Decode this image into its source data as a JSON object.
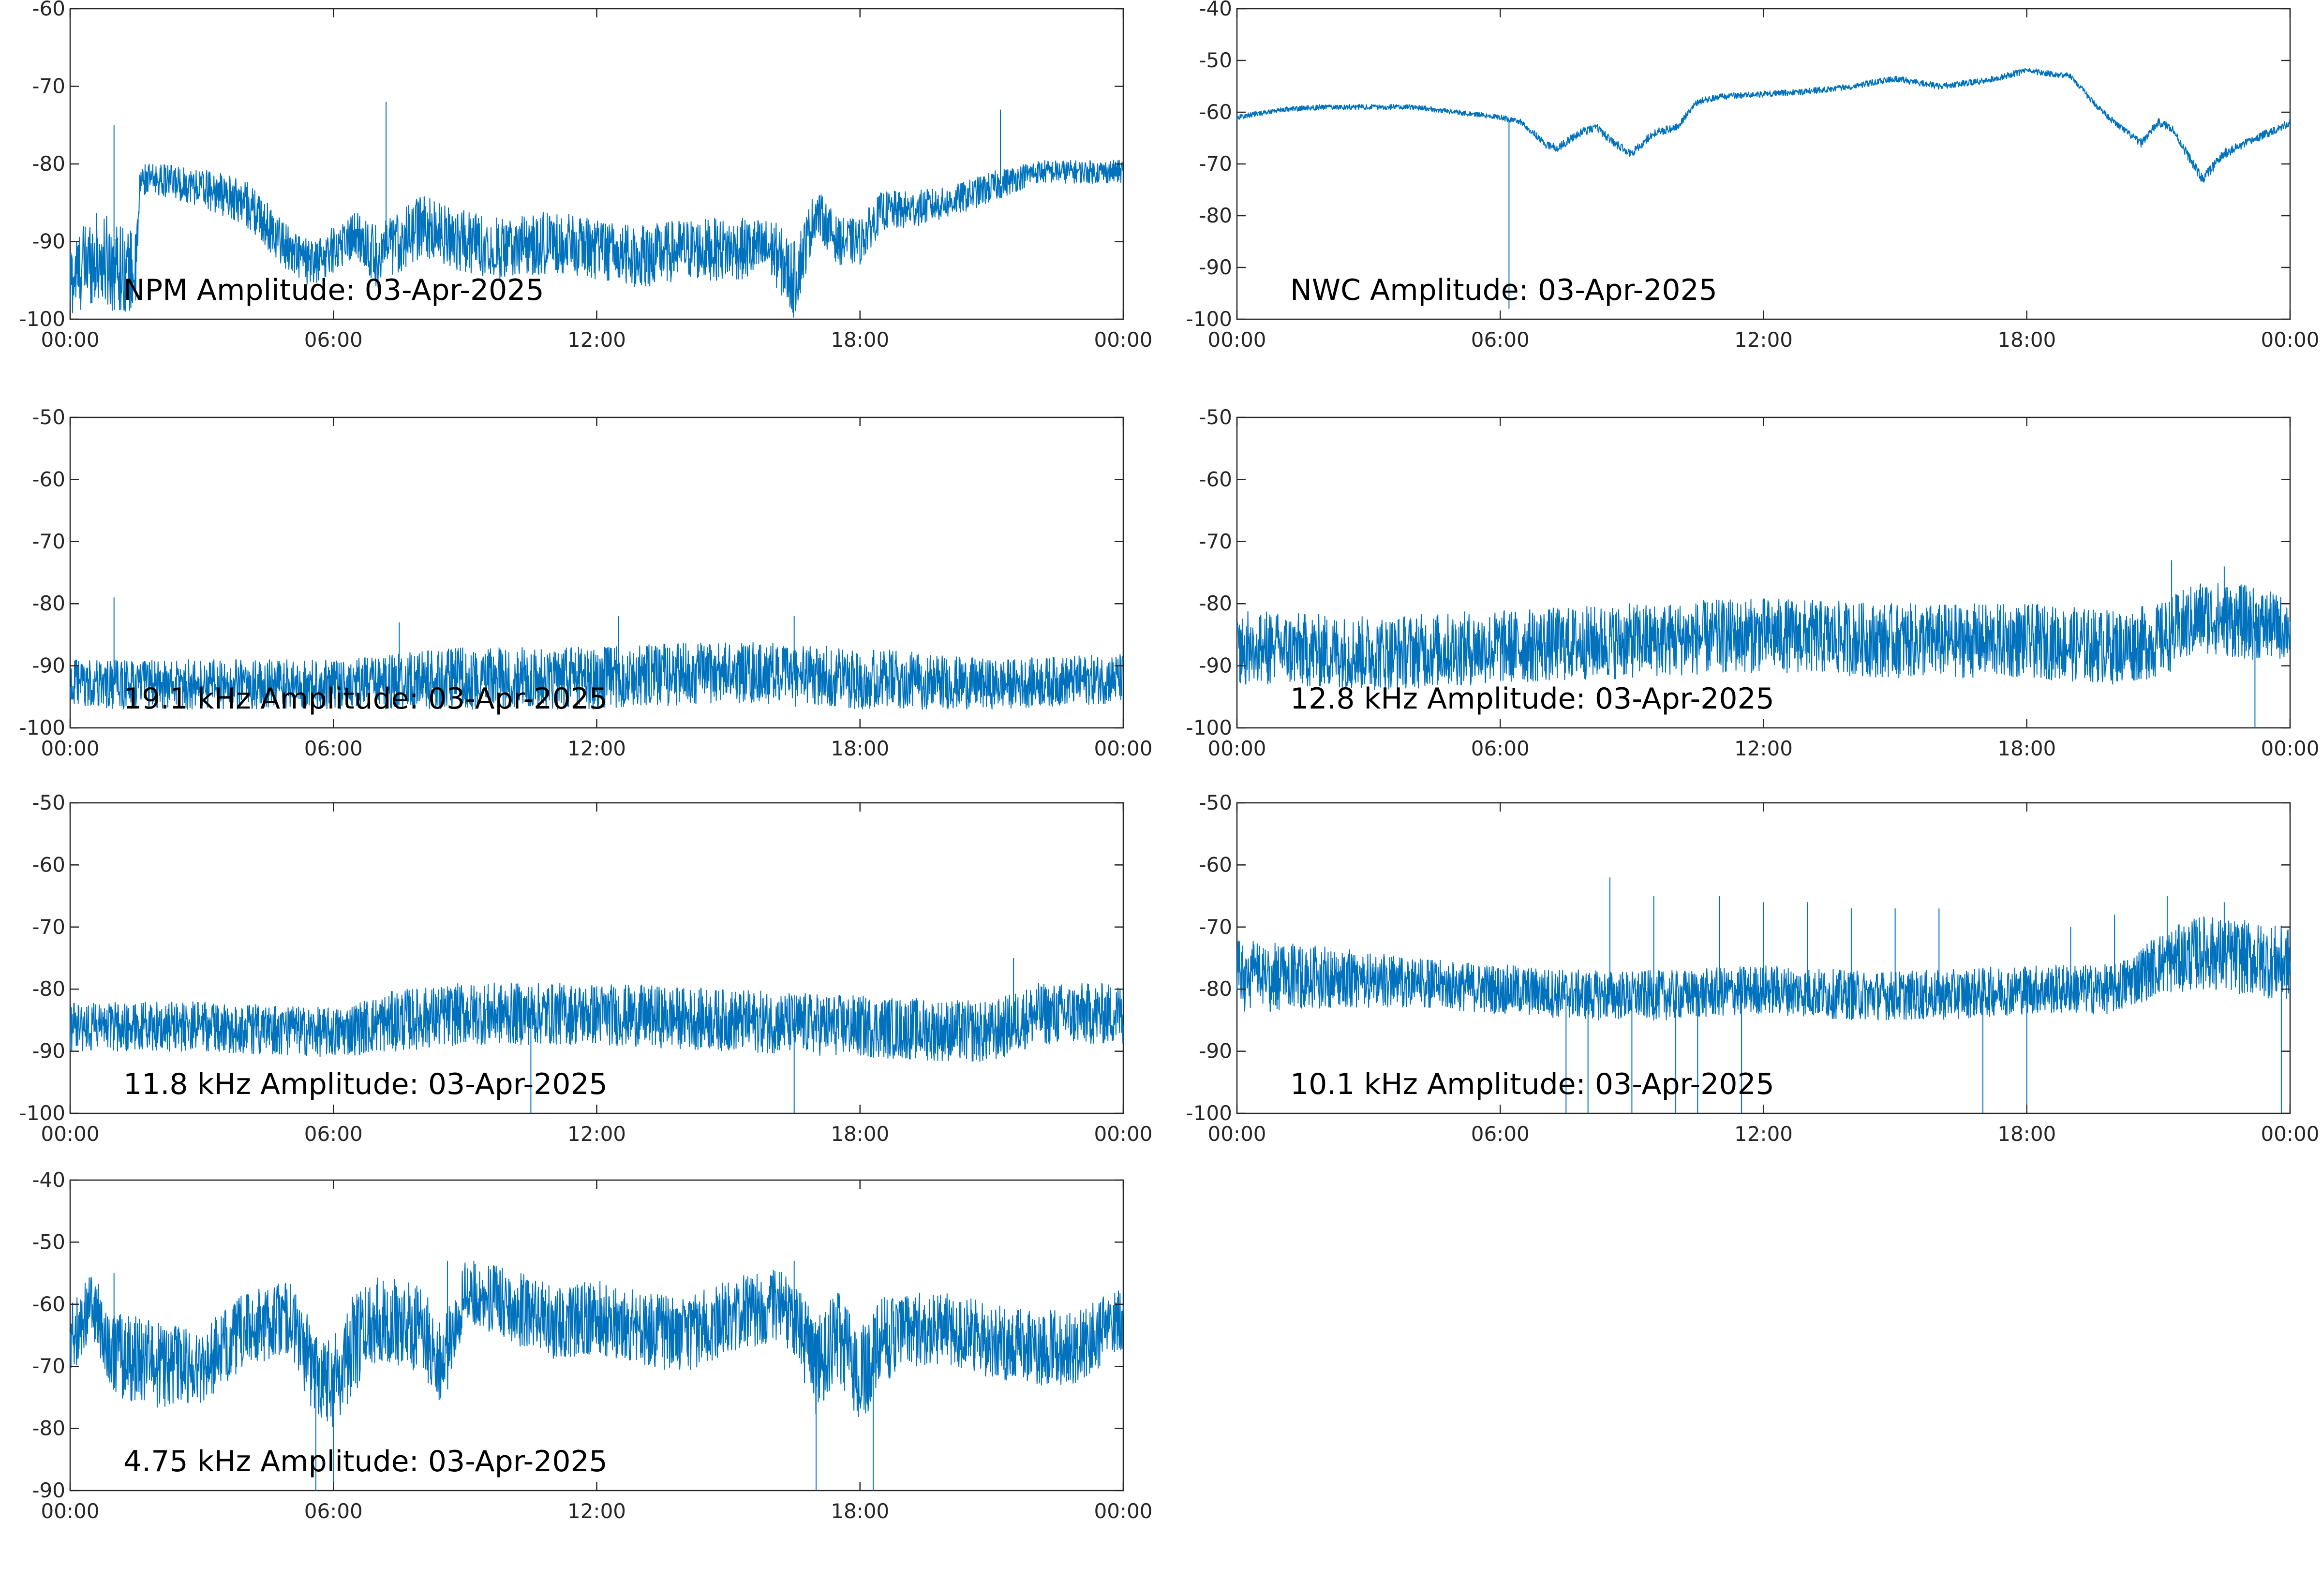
{
  "colors": {
    "line": "#0072bd",
    "axis": "#262626",
    "background": "#ffffff"
  },
  "x_tick_labels": [
    "00:00",
    "06:00",
    "12:00",
    "18:00",
    "00:00"
  ],
  "chart_data": [
    {
      "type": "line",
      "title": "NPM Amplitude: 03-Apr-2025",
      "xlabel": "",
      "ylabel": "",
      "x_range_hours": [
        0,
        24
      ],
      "ylim": [
        -100,
        -60
      ],
      "yticks": [
        -100,
        -90,
        -80,
        -70,
        -60
      ],
      "grid": false,
      "series": [
        {
          "x": [
            0,
            0.5,
            1,
            1.5,
            1.6,
            2,
            3,
            4,
            5,
            5.5,
            6,
            6.5,
            7,
            7.5,
            8,
            9,
            10,
            11,
            12,
            13,
            14,
            15,
            16,
            16.5,
            17,
            17.5,
            18,
            18.5,
            19,
            20,
            21,
            22,
            23,
            24
          ],
          "y": [
            -95,
            -92,
            -93,
            -94,
            -82,
            -82,
            -83,
            -85,
            -91,
            -93,
            -91,
            -89,
            -92,
            -90,
            -88,
            -90,
            -91,
            -90,
            -91,
            -92,
            -91,
            -91,
            -91,
            -95,
            -86,
            -90,
            -90,
            -86,
            -86,
            -85,
            -83,
            -81,
            -81,
            -81
          ],
          "spread": [
            5,
            6,
            6,
            5,
            2,
            2,
            2.5,
            3,
            3,
            3,
            3,
            3,
            4,
            4,
            4,
            4,
            4,
            4,
            4,
            4,
            4,
            4,
            4,
            5,
            3,
            3,
            3,
            2.5,
            2.5,
            2,
            2,
            1.5,
            1.5,
            1.5
          ],
          "spikes": [
            [
              1,
              -75
            ],
            [
              7.2,
              -72
            ],
            [
              21.2,
              -73
            ]
          ]
        }
      ]
    },
    {
      "type": "line",
      "title": "NWC Amplitude: 03-Apr-2025",
      "xlabel": "",
      "ylabel": "",
      "x_range_hours": [
        0,
        24
      ],
      "ylim": [
        -100,
        -40
      ],
      "yticks": [
        -100,
        -90,
        -80,
        -70,
        -60,
        -50,
        -40
      ],
      "grid": false,
      "series": [
        {
          "x": [
            0,
            1,
            2,
            3,
            4,
            5,
            6,
            6.5,
            7,
            7.3,
            7.8,
            8.2,
            8.6,
            9,
            9.5,
            10,
            10.5,
            11,
            12,
            13,
            14,
            15,
            16,
            17,
            18,
            19,
            19.5,
            20,
            20.6,
            21,
            21.3,
            22,
            22.5,
            23,
            24
          ],
          "y": [
            -61,
            -59.5,
            -59,
            -59,
            -59,
            -60,
            -61,
            -62,
            -66,
            -67,
            -64,
            -63,
            -66,
            -68,
            -64,
            -63,
            -58,
            -57,
            -56.5,
            -56,
            -55,
            -53.5,
            -55,
            -54,
            -52,
            -53,
            -58,
            -62,
            -66,
            -62,
            -63,
            -73,
            -68,
            -66,
            -62
          ],
          "spread": [
            0.5,
            0.5,
            0.5,
            0.5,
            0.5,
            0.5,
            0.5,
            0.6,
            0.8,
            0.8,
            0.8,
            0.8,
            0.8,
            0.8,
            0.8,
            0.8,
            0.6,
            0.6,
            0.6,
            0.6,
            0.6,
            0.6,
            0.6,
            0.6,
            0.6,
            0.6,
            0.6,
            0.6,
            0.8,
            0.8,
            0.8,
            1,
            1,
            0.8,
            0.8
          ],
          "spikes": [
            [
              6.2,
              -98
            ]
          ]
        }
      ]
    },
    {
      "type": "line",
      "title": "19.1 kHz Amplitude: 03-Apr-2025",
      "xlabel": "",
      "ylabel": "",
      "x_range_hours": [
        0,
        24
      ],
      "ylim": [
        -100,
        -50
      ],
      "yticks": [
        -100,
        -90,
        -80,
        -70,
        -60,
        -50
      ],
      "grid": false,
      "series": [
        {
          "x": [
            0,
            3,
            6,
            9,
            12,
            15,
            18,
            21,
            24
          ],
          "y": [
            -93,
            -93,
            -93,
            -92,
            -92,
            -91,
            -92,
            -93,
            -92
          ],
          "spread": [
            4,
            4,
            4,
            5,
            5,
            5,
            5,
            4,
            4
          ],
          "spikes": [
            [
              1,
              -79
            ],
            [
              7.5,
              -83
            ],
            [
              12.5,
              -82
            ],
            [
              16.5,
              -82
            ]
          ]
        }
      ]
    },
    {
      "type": "line",
      "title": "12.8 kHz Amplitude: 03-Apr-2025",
      "xlabel": "",
      "ylabel": "",
      "x_range_hours": [
        0,
        24
      ],
      "ylim": [
        -100,
        -50
      ],
      "yticks": [
        -100,
        -90,
        -80,
        -70,
        -60,
        -50
      ],
      "grid": false,
      "series": [
        {
          "x": [
            0,
            3,
            6,
            9,
            12,
            15,
            18,
            20,
            21,
            22,
            23,
            24
          ],
          "y": [
            -87,
            -88,
            -87,
            -86,
            -85,
            -86,
            -86,
            -87,
            -86,
            -82,
            -83,
            -84
          ],
          "spread": [
            6,
            6,
            6,
            6,
            6,
            6,
            6,
            6,
            6,
            6,
            6,
            5
          ],
          "spikes": [
            [
              21.3,
              -73
            ],
            [
              22.5,
              -74
            ],
            [
              23.2,
              -100
            ]
          ]
        }
      ]
    },
    {
      "type": "line",
      "title": "11.8 kHz Amplitude: 03-Apr-2025",
      "xlabel": "",
      "ylabel": "",
      "x_range_hours": [
        0,
        24
      ],
      "ylim": [
        -100,
        -50
      ],
      "yticks": [
        -100,
        -90,
        -80,
        -70,
        -60,
        -50
      ],
      "grid": false,
      "series": [
        {
          "x": [
            0,
            3,
            6,
            7.5,
            9,
            12,
            15,
            18,
            21,
            22,
            24
          ],
          "y": [
            -86,
            -86,
            -87,
            -85,
            -84,
            -84,
            -85,
            -86,
            -87,
            -84,
            -84
          ],
          "spread": [
            4,
            4,
            4,
            5,
            5,
            5,
            5,
            5,
            5,
            5,
            5
          ],
          "spikes": [
            [
              10.5,
              -100
            ],
            [
              16.5,
              -100
            ],
            [
              21.5,
              -75
            ]
          ]
        }
      ]
    },
    {
      "type": "line",
      "title": "10.1 kHz Amplitude: 03-Apr-2025",
      "xlabel": "",
      "ylabel": "",
      "x_range_hours": [
        0,
        24
      ],
      "ylim": [
        -100,
        -50
      ],
      "yticks": [
        -100,
        -90,
        -80,
        -70,
        -60,
        -50
      ],
      "grid": false,
      "series": [
        {
          "x": [
            0,
            2,
            4,
            6,
            8,
            10,
            12,
            14,
            16,
            18,
            20,
            21,
            22,
            24
          ],
          "y": [
            -78,
            -78,
            -79,
            -80,
            -81,
            -81,
            -80,
            -81,
            -81,
            -80,
            -80,
            -76,
            -74,
            -76
          ],
          "spread": [
            6,
            5,
            4,
            4,
            4,
            4,
            4,
            4,
            4,
            4,
            4,
            5,
            6,
            6
          ],
          "spikes": [
            [
              7.5,
              -100
            ],
            [
              8,
              -100
            ],
            [
              8.5,
              -62
            ],
            [
              9,
              -100
            ],
            [
              9.5,
              -65
            ],
            [
              10,
              -100
            ],
            [
              10.5,
              -100
            ],
            [
              11,
              -65
            ],
            [
              11.5,
              -100
            ],
            [
              12,
              -66
            ],
            [
              13,
              -66
            ],
            [
              14,
              -67
            ],
            [
              15,
              -67
            ],
            [
              16,
              -67
            ],
            [
              17,
              -100
            ],
            [
              18,
              -100
            ],
            [
              19,
              -70
            ],
            [
              20,
              -68
            ],
            [
              21.2,
              -65
            ],
            [
              22.5,
              -66
            ],
            [
              23.8,
              -100
            ]
          ]
        }
      ]
    },
    {
      "type": "line",
      "title": "4.75 kHz Amplitude: 03-Apr-2025",
      "xlabel": "",
      "ylabel": "",
      "x_range_hours": [
        0,
        24
      ],
      "ylim": [
        -90,
        -40
      ],
      "yticks": [
        -90,
        -80,
        -70,
        -60,
        -50,
        -40
      ],
      "grid": false,
      "series": [
        {
          "x": [
            0,
            0.5,
            1,
            2,
            3,
            4,
            5,
            5.5,
            6,
            6.5,
            7,
            8,
            8.5,
            9,
            10,
            11,
            12,
            13,
            14,
            15,
            16,
            16.5,
            17,
            17.5,
            18,
            18.5,
            19,
            20,
            21,
            22,
            23,
            24
          ],
          "y": [
            -66,
            -60,
            -68,
            -70,
            -70,
            -64,
            -62,
            -70,
            -72,
            -66,
            -62,
            -64,
            -70,
            -58,
            -60,
            -63,
            -62,
            -64,
            -65,
            -62,
            -60,
            -62,
            -70,
            -65,
            -72,
            -66,
            -64,
            -64,
            -66,
            -67,
            -67,
            -62
          ],
          "spread": [
            6,
            5,
            7,
            7,
            6,
            6,
            6,
            7,
            8,
            8,
            7,
            7,
            7,
            5,
            6,
            6,
            6,
            6,
            6,
            6,
            6,
            6,
            8,
            7,
            8,
            7,
            6,
            6,
            6,
            6,
            6,
            5
          ],
          "spikes": [
            [
              1,
              -55
            ],
            [
              5.6,
              -90
            ],
            [
              6,
              -90
            ],
            [
              8.6,
              -53
            ],
            [
              16.5,
              -53
            ],
            [
              17,
              -90
            ],
            [
              18.3,
              -90
            ],
            [
              9.2,
              -53
            ]
          ]
        }
      ]
    }
  ]
}
